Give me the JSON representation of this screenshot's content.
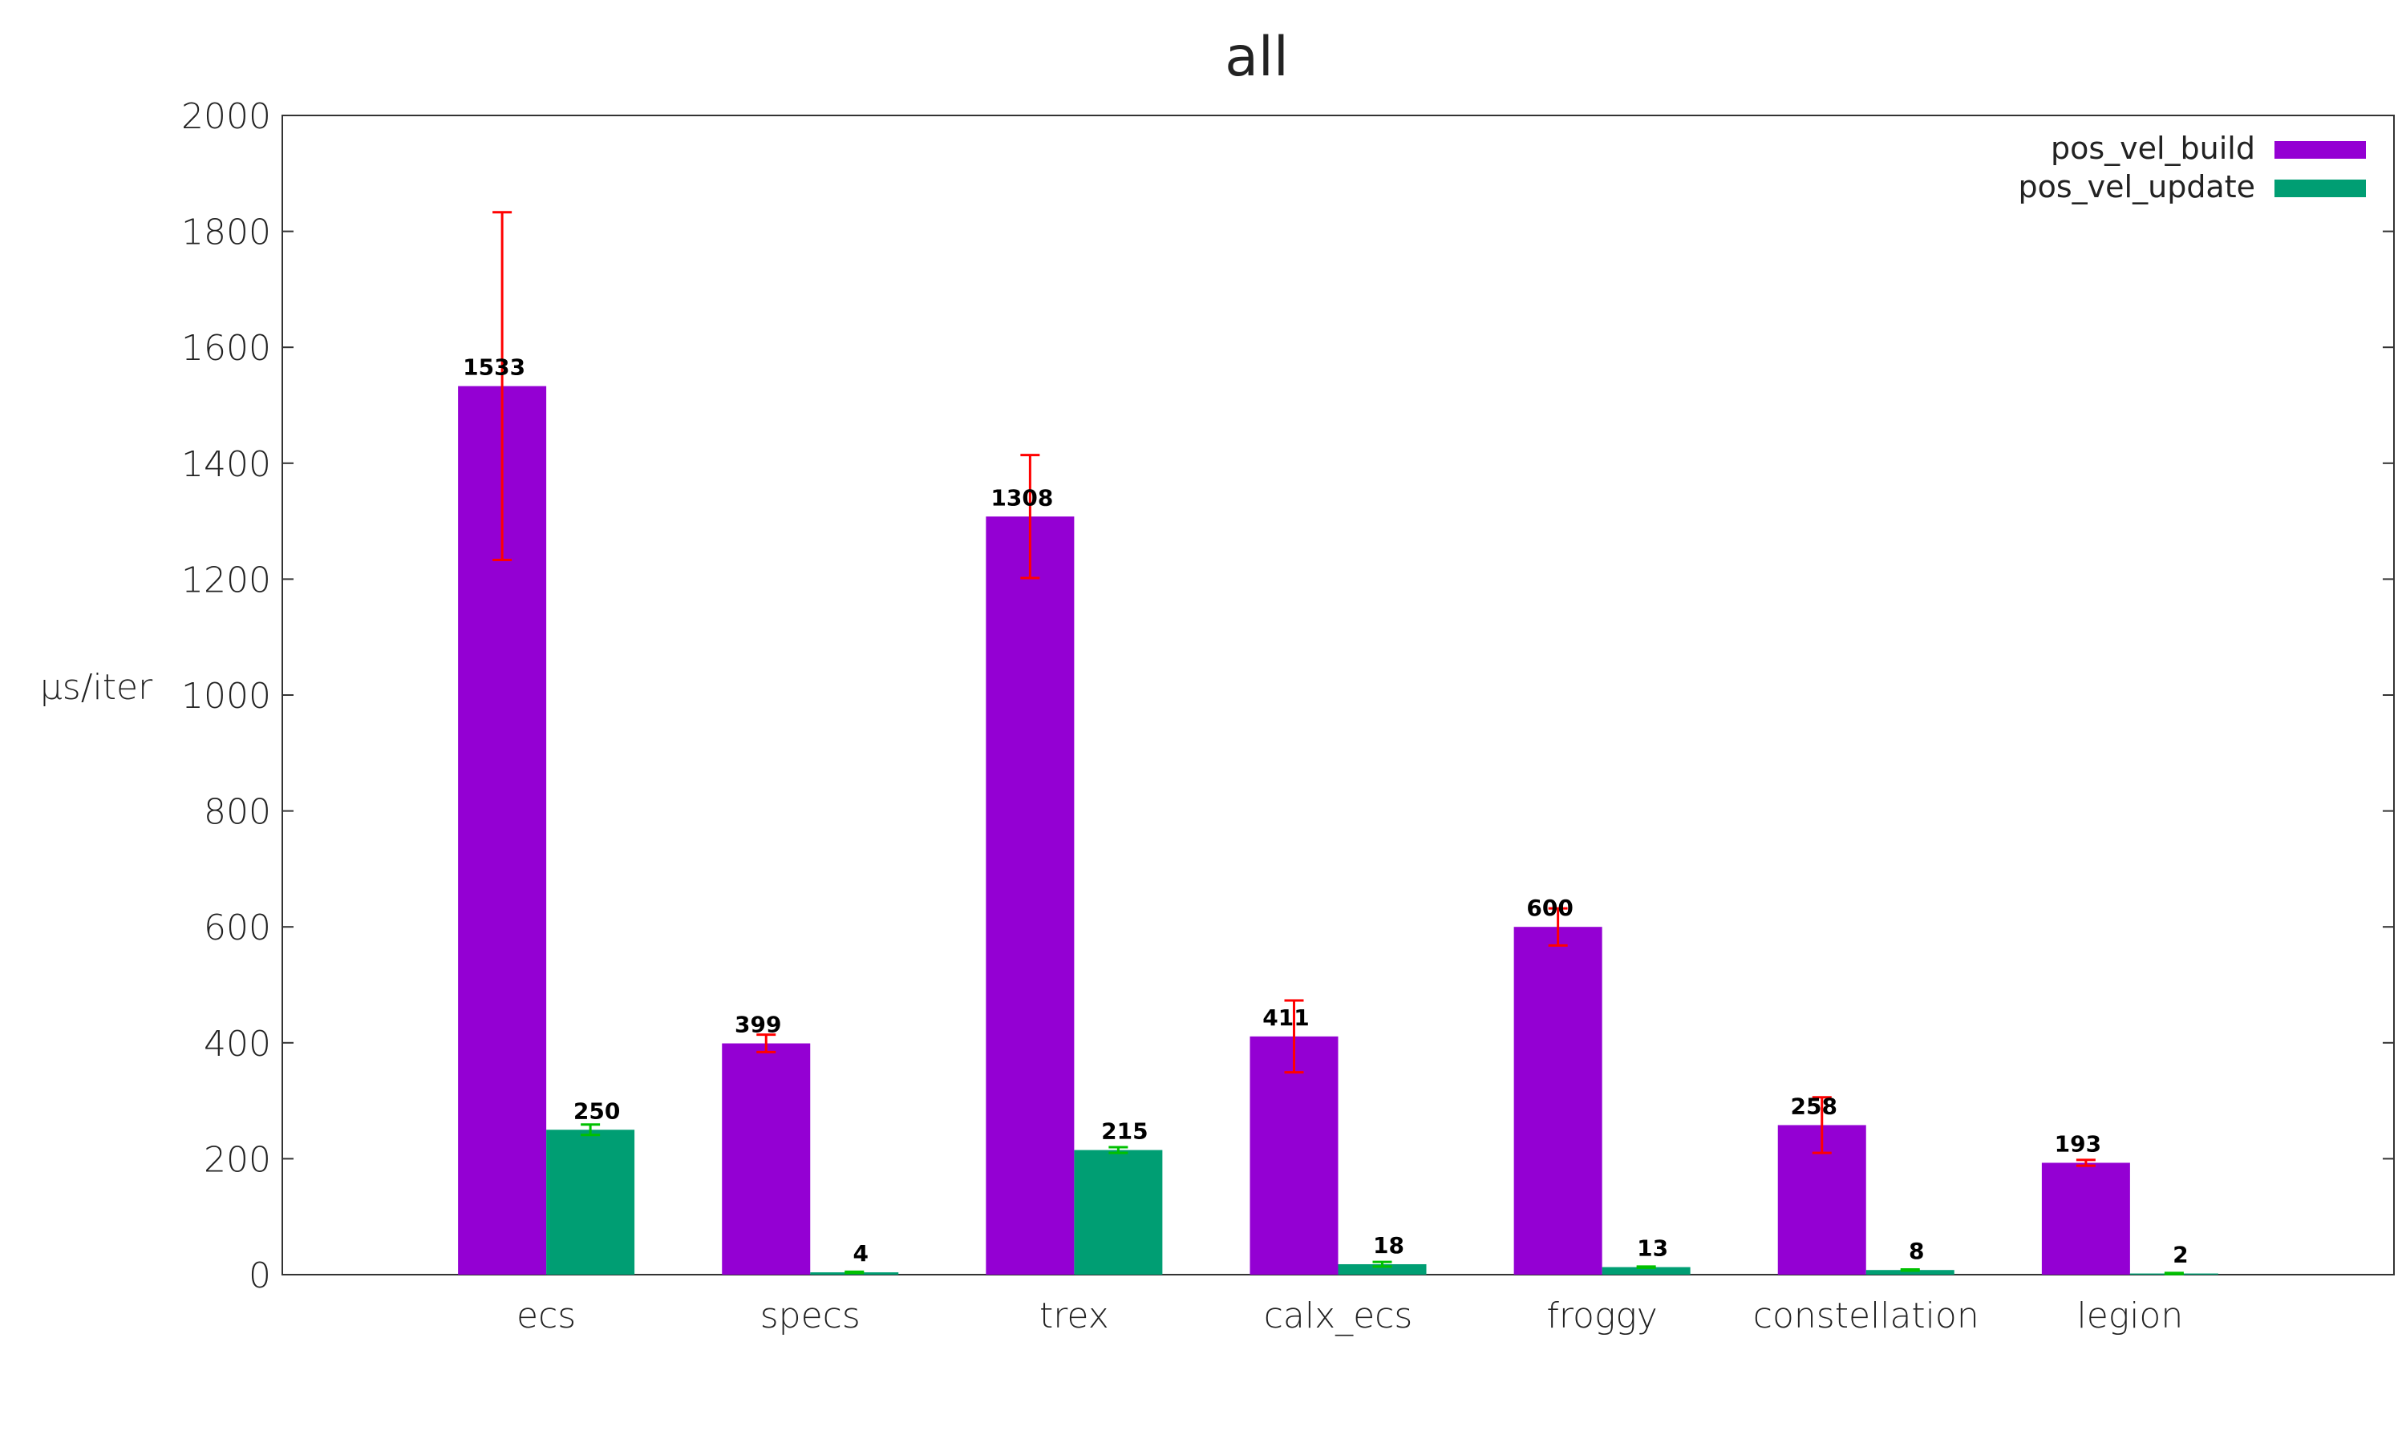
{
  "chart_data": {
    "type": "bar",
    "title": "all",
    "xlabel": "",
    "ylabel": "µs/iter",
    "ylim": [
      0,
      2000
    ],
    "yticks": [
      0,
      200,
      400,
      600,
      800,
      1000,
      1200,
      1400,
      1600,
      1800,
      2000
    ],
    "grid": false,
    "legend_position": "top-right",
    "categories": [
      "ecs",
      "specs",
      "trex",
      "calx_ecs",
      "froggy",
      "constellation",
      "legion"
    ],
    "series": [
      {
        "name": "pos_vel_build",
        "color": "#9400d3",
        "error_color": "#ff0000",
        "values": [
          1533,
          399,
          1308,
          411,
          600,
          258,
          193
        ],
        "errors": [
          300,
          15,
          106,
          62,
          32,
          48,
          5
        ]
      },
      {
        "name": "pos_vel_update",
        "color": "#009e73",
        "error_color": "#00c000",
        "values": [
          250,
          4,
          215,
          18,
          13,
          8,
          2
        ],
        "errors": [
          9,
          1,
          5,
          4,
          1,
          1,
          1
        ]
      }
    ]
  }
}
